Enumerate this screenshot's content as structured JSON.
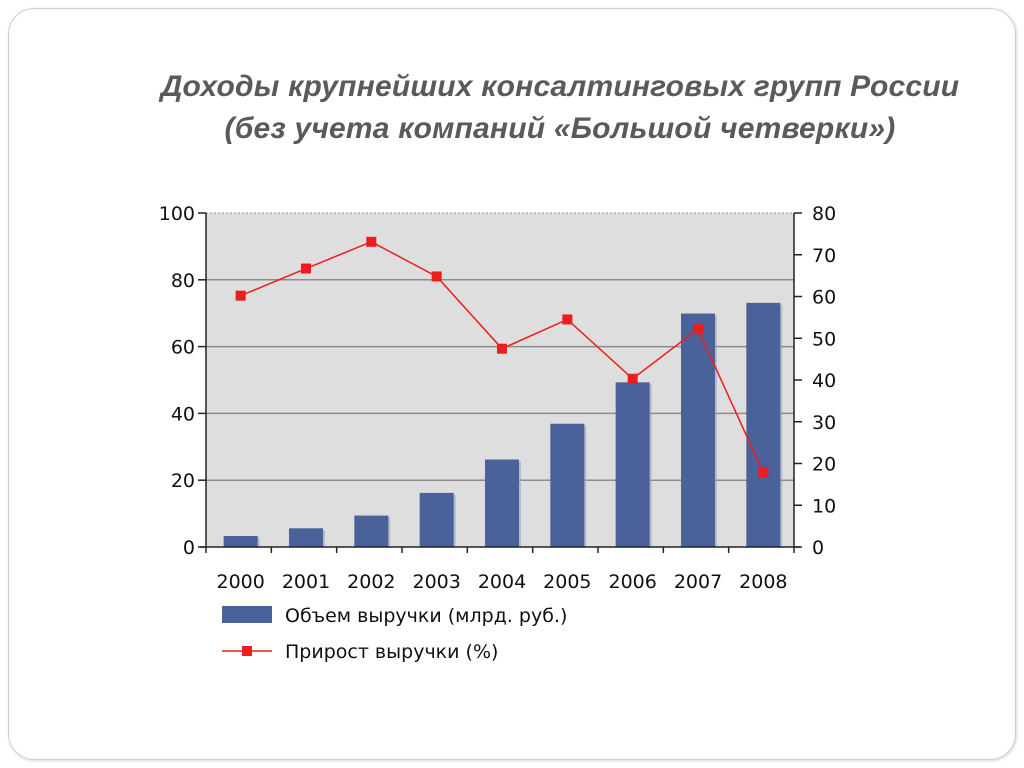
{
  "slide": {
    "title_line_1": "Доходы крупнейших консалтинговых групп России",
    "title_line_2": "(без учета компаний «Большой четверки»)"
  },
  "chart_data": {
    "type": "bar",
    "categories": [
      "2000",
      "2001",
      "2002",
      "2003",
      "2004",
      "2005",
      "2006",
      "2007",
      "2008"
    ],
    "series": [
      {
        "name": "Объем выручки (млрд. руб.)",
        "type": "bar",
        "axis": "left",
        "color": "#4a6199",
        "values": [
          3.3,
          5.6,
          9.4,
          16.2,
          26.2,
          36.9,
          49.3,
          69.9,
          73.1
        ]
      },
      {
        "name": "Прирост выручки (%)",
        "type": "line",
        "axis": "right",
        "color": "#ee1c1c",
        "values": [
          60.2,
          66.7,
          73.1,
          64.8,
          47.5,
          54.5,
          40.3,
          52.2,
          17.8
        ]
      }
    ],
    "y_left": {
      "min": 0,
      "max": 100,
      "ticks": [
        0,
        20,
        40,
        60,
        80,
        100
      ]
    },
    "y_right": {
      "min": 0,
      "max": 80,
      "ticks": [
        0,
        10,
        20,
        30,
        40,
        50,
        60,
        70,
        80
      ]
    },
    "grid": true,
    "legend_position": "bottom-left",
    "plot_background": "#dedede"
  }
}
